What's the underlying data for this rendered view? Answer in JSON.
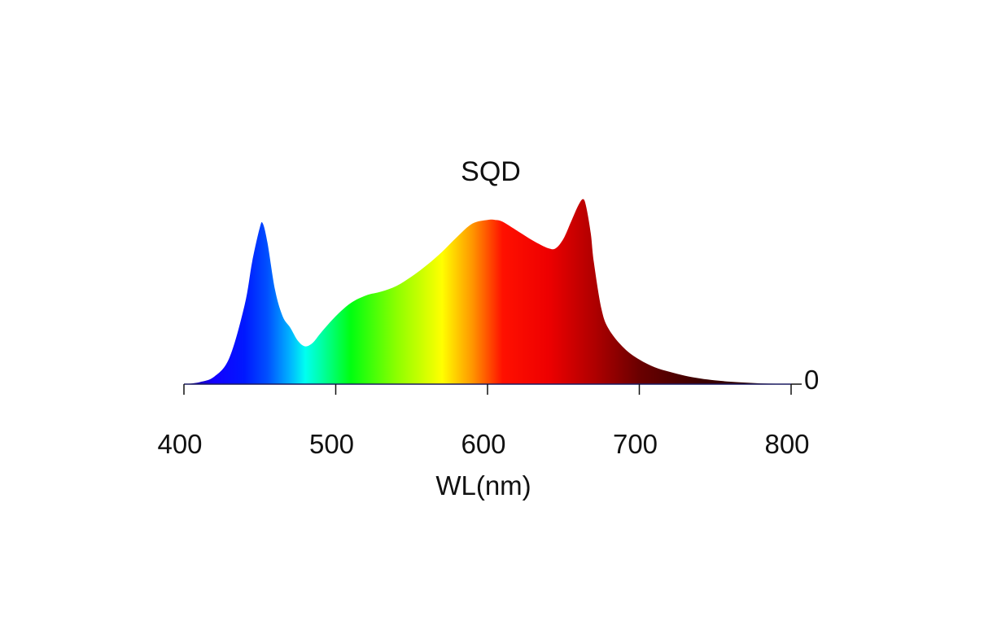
{
  "chart_data": {
    "type": "area",
    "title": "SQD",
    "xlabel": "WL(nm)",
    "ylabel": "",
    "xlim": [
      400,
      800
    ],
    "ylim": [
      0,
      1
    ],
    "x_ticks": [
      "400",
      "500",
      "600",
      "700",
      "800"
    ],
    "y_tick_label": "0",
    "grid": false,
    "x": [
      400,
      410,
      420,
      430,
      440,
      445,
      450,
      452,
      455,
      460,
      465,
      470,
      475,
      480,
      485,
      490,
      500,
      510,
      520,
      530,
      540,
      550,
      560,
      570,
      580,
      590,
      600,
      605,
      610,
      620,
      630,
      640,
      645,
      650,
      655,
      660,
      663,
      665,
      668,
      670,
      675,
      680,
      690,
      700,
      710,
      720,
      730,
      740,
      750,
      760,
      770,
      780,
      790,
      800
    ],
    "y": [
      0.0,
      0.01,
      0.04,
      0.14,
      0.42,
      0.65,
      0.83,
      0.85,
      0.75,
      0.5,
      0.36,
      0.3,
      0.23,
      0.2,
      0.22,
      0.27,
      0.36,
      0.43,
      0.47,
      0.49,
      0.52,
      0.57,
      0.63,
      0.7,
      0.78,
      0.85,
      0.87,
      0.87,
      0.86,
      0.81,
      0.76,
      0.72,
      0.72,
      0.77,
      0.86,
      0.95,
      0.98,
      0.94,
      0.8,
      0.65,
      0.4,
      0.29,
      0.19,
      0.13,
      0.09,
      0.065,
      0.045,
      0.03,
      0.02,
      0.013,
      0.008,
      0.004,
      0.002,
      0.0
    ],
    "color_gradient": [
      {
        "wl": 400,
        "color": "#1a0080"
      },
      {
        "wl": 420,
        "color": "#1200ff"
      },
      {
        "wl": 440,
        "color": "#0018ff"
      },
      {
        "wl": 455,
        "color": "#0050ff"
      },
      {
        "wl": 470,
        "color": "#00b4ff"
      },
      {
        "wl": 480,
        "color": "#00fff0"
      },
      {
        "wl": 490,
        "color": "#00ffaa"
      },
      {
        "wl": 510,
        "color": "#00ff10"
      },
      {
        "wl": 540,
        "color": "#8cff00"
      },
      {
        "wl": 570,
        "color": "#ffff00"
      },
      {
        "wl": 590,
        "color": "#ff9600"
      },
      {
        "wl": 610,
        "color": "#ff1000"
      },
      {
        "wl": 640,
        "color": "#ee0000"
      },
      {
        "wl": 670,
        "color": "#b00000"
      },
      {
        "wl": 700,
        "color": "#6a0000"
      },
      {
        "wl": 740,
        "color": "#3c0000"
      },
      {
        "wl": 800,
        "color": "#200000"
      }
    ]
  }
}
